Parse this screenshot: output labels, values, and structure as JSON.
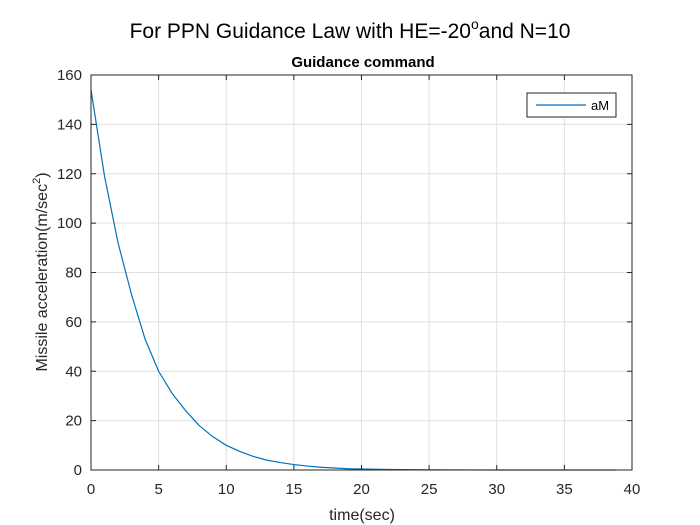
{
  "figure": {
    "suptitle_main": "For PPN Guidance Law with HE=-20",
    "suptitle_sup": "o",
    "suptitle_tail": "and N=10"
  },
  "chart_data": {
    "type": "line",
    "title": "Guidance command",
    "xlabel": "time(sec)",
    "ylabel_main": "Missile acceleration(m/sec",
    "ylabel_sup": "2",
    "ylabel_tail": ")",
    "xlim": [
      0,
      40
    ],
    "ylim": [
      0,
      160
    ],
    "xticks": [
      0,
      5,
      10,
      15,
      20,
      25,
      30,
      35,
      40
    ],
    "yticks": [
      0,
      20,
      40,
      60,
      80,
      100,
      120,
      140,
      160
    ],
    "grid": true,
    "legend_position": "top-right",
    "series": [
      {
        "name": "aM",
        "color": "#0072BD",
        "x": [
          0,
          1,
          2,
          3,
          4,
          5,
          6,
          7,
          8,
          9,
          10,
          11,
          12,
          13,
          14,
          15,
          16,
          17,
          18,
          19,
          20,
          22,
          24,
          26,
          28,
          30,
          32,
          34,
          36,
          38.8
        ],
        "y": [
          154,
          119,
          92,
          71,
          53,
          40,
          31,
          24,
          18,
          13.5,
          10,
          7.5,
          5.5,
          4,
          3,
          2.2,
          1.6,
          1.1,
          0.8,
          0.5,
          0.4,
          0.2,
          0.1,
          0.05,
          0.02,
          0.01,
          0,
          0,
          0,
          0
        ]
      }
    ]
  }
}
